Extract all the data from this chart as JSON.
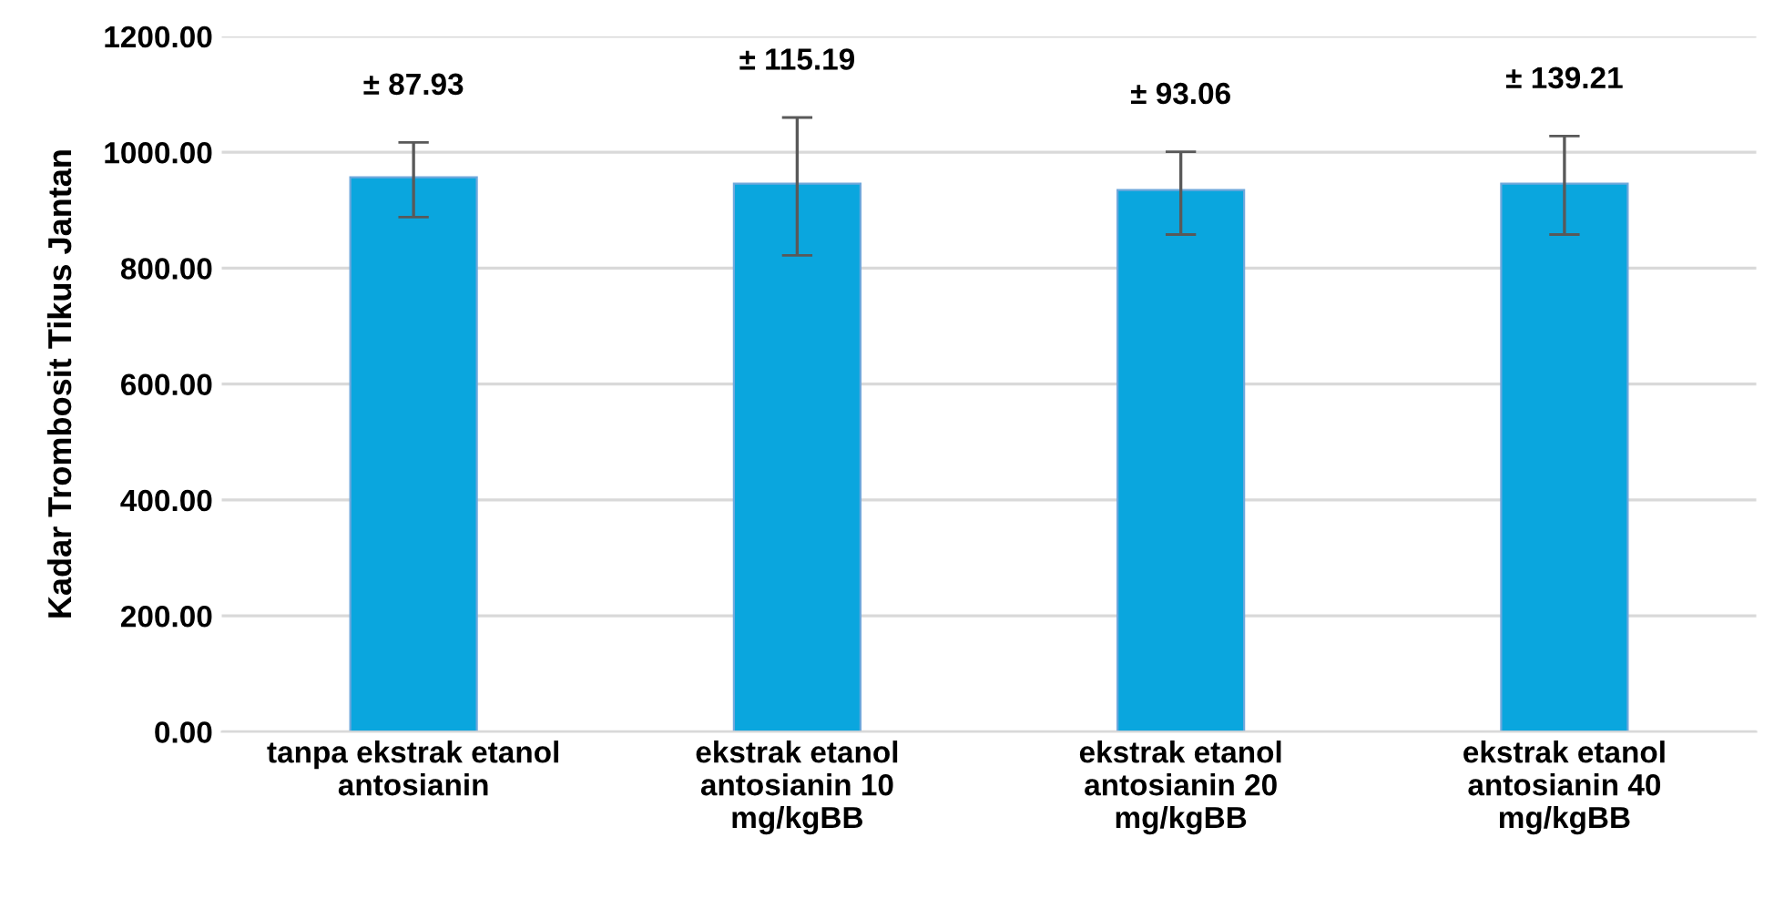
{
  "chart_data": {
    "type": "bar",
    "ylabel": "Kadar Trombosit Tikus Jantan",
    "categories": [
      "tanpa ekstrak etanol\nantosianin",
      "ekstrak etanol\nantosianin 10\nmg/kgBB",
      "ekstrak etanol\nantosianin 20\nmg/kgBB",
      "ekstrak etanol\nantosianin 40\nmg/kgBB"
    ],
    "values": [
      957,
      946,
      935,
      946
    ],
    "errors": [
      [
        888,
        1017
      ],
      [
        822,
        1060
      ],
      [
        858,
        1001
      ],
      [
        858,
        1028
      ]
    ],
    "color": "#0aa6de",
    "ylim": [
      0,
      1200
    ],
    "yticks": [
      {
        "value": 0,
        "label": "0.00"
      },
      {
        "value": 200,
        "label": "200.00"
      },
      {
        "value": 400,
        "label": "400.00"
      },
      {
        "value": 600,
        "label": "600.00"
      },
      {
        "value": 800,
        "label": "800.00"
      },
      {
        "value": 1000,
        "label": "1000.00"
      },
      {
        "value": 1200,
        "label": "1200.00"
      }
    ],
    "grid": "y",
    "annotations": [
      "± 87.93",
      "± 115.19",
      "± 93.06",
      "± 139.21"
    ]
  }
}
